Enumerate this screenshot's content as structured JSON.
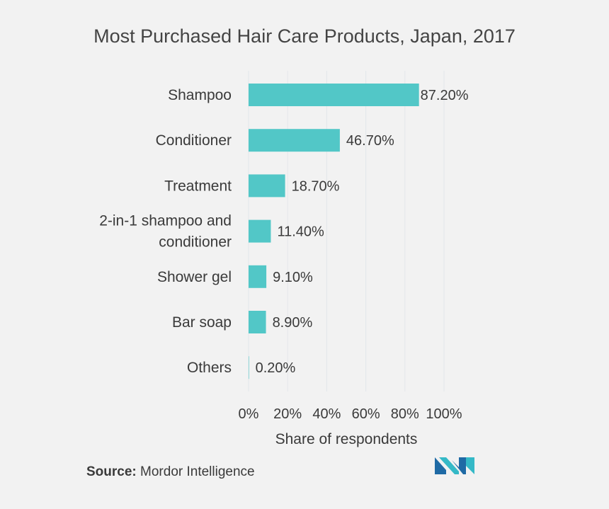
{
  "chart_data": {
    "type": "bar",
    "orientation": "horizontal",
    "title": "Most Purchased Hair Care Products, Japan, 2017",
    "categories": [
      "Shampoo",
      "Conditioner",
      "Treatment",
      "2-in-1  shampoo and conditioner",
      "Shower gel",
      "Bar soap",
      "Others"
    ],
    "category_lines": [
      [
        "Shampoo"
      ],
      [
        "Conditioner"
      ],
      [
        "Treatment"
      ],
      [
        "2-in-1  shampoo and",
        "conditioner"
      ],
      [
        "Shower gel"
      ],
      [
        "Bar soap"
      ],
      [
        "Others"
      ]
    ],
    "values": [
      87.2,
      46.7,
      18.7,
      11.4,
      9.1,
      8.9,
      0.2
    ],
    "value_labels": [
      "87.20%",
      "46.70%",
      "18.70%",
      "11.40%",
      "9.10%",
      "8.90%",
      "0.20%"
    ],
    "xlabel": "Share of respondents",
    "xlim": [
      0,
      100
    ],
    "xticks": [
      0,
      20,
      40,
      60,
      80,
      100
    ],
    "xtick_labels": [
      "0%",
      "20%",
      "40%",
      "60%",
      "80%",
      "100%"
    ],
    "grid": true,
    "bar_color": "#52c7c7",
    "grid_color": "#e3e6ea"
  },
  "source": {
    "label": "Source:",
    "text": "Mordor Intelligence"
  },
  "logo": {
    "icon": "mordor-intelligence-logo",
    "colors": [
      "#1f6aa5",
      "#35b9c7"
    ]
  }
}
